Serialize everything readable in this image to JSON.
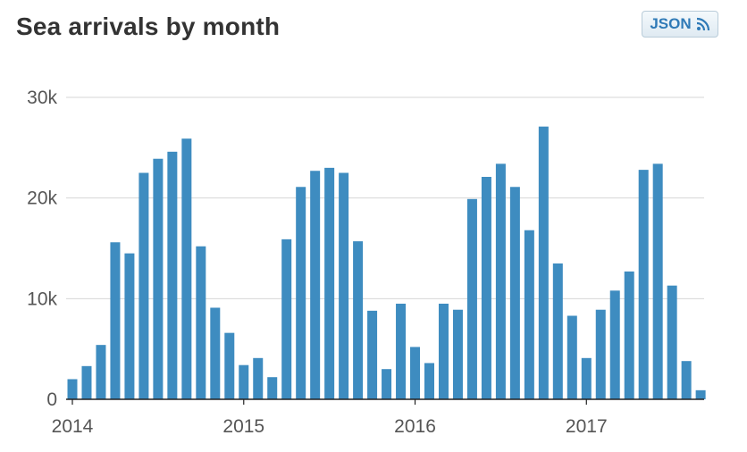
{
  "header": {
    "title": "Sea arrivals by month",
    "json_button": {
      "label": "JSON",
      "icon": "rss-feed-icon"
    }
  },
  "colors": {
    "bar": "#3e8cc0",
    "grid": "#d6d6d6",
    "axis": "#222222",
    "text": "#555555"
  },
  "chart_data": {
    "type": "bar",
    "title": "Sea arrivals by month",
    "xlabel": "",
    "ylabel": "",
    "ylim": [
      0,
      30000
    ],
    "y_ticks": [
      0,
      10000,
      20000,
      30000
    ],
    "y_tick_labels": [
      "0",
      "10k",
      "20k",
      "30k"
    ],
    "x_ticks": [
      "2014",
      "2015",
      "2016",
      "2017"
    ],
    "grid": true,
    "legend": "none",
    "categories": [
      "2014-01",
      "2014-02",
      "2014-03",
      "2014-04",
      "2014-05",
      "2014-06",
      "2014-07",
      "2014-08",
      "2014-09",
      "2014-10",
      "2014-11",
      "2014-12",
      "2015-01",
      "2015-02",
      "2015-03",
      "2015-04",
      "2015-05",
      "2015-06",
      "2015-07",
      "2015-08",
      "2015-09",
      "2015-10",
      "2015-11",
      "2015-12",
      "2016-01",
      "2016-02",
      "2016-03",
      "2016-04",
      "2016-05",
      "2016-06",
      "2016-07",
      "2016-08",
      "2016-09",
      "2016-10",
      "2016-11",
      "2016-12",
      "2017-01",
      "2017-02",
      "2017-03",
      "2017-04",
      "2017-05",
      "2017-06",
      "2017-07",
      "2017-08",
      "2017-09"
    ],
    "values": [
      2000,
      3300,
      5400,
      15600,
      14500,
      22500,
      23900,
      24600,
      25900,
      15200,
      9100,
      6600,
      3400,
      4100,
      2200,
      15900,
      21100,
      22700,
      23000,
      22500,
      15700,
      8800,
      3000,
      9500,
      5200,
      3600,
      9500,
      8900,
      19900,
      22100,
      23400,
      21100,
      16800,
      27100,
      13500,
      8300,
      4100,
      8900,
      10800,
      12700,
      22800,
      23400,
      11300,
      3800,
      900
    ]
  }
}
